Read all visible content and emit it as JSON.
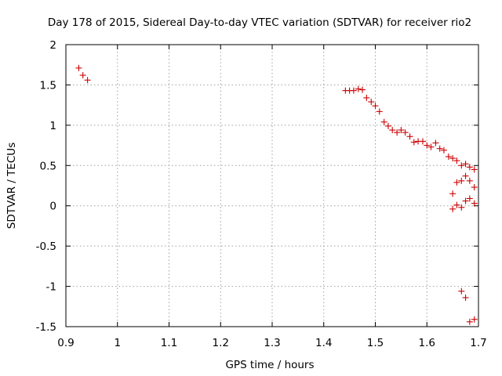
{
  "chart_data": {
    "type": "scatter",
    "title": "Day 178 of 2015, Sidereal Day-to-day VTEC variation (SDTVAR) for receiver rio2",
    "xlabel": "GPS time / hours",
    "ylabel": "SDTVAR / TECUs",
    "xlim": [
      0.9,
      1.7
    ],
    "ylim": [
      -1.5,
      2
    ],
    "xticks": [
      0.9,
      1.0,
      1.1,
      1.2,
      1.3,
      1.4,
      1.5,
      1.6,
      1.7
    ],
    "xtick_labels": [
      "0.9",
      "1",
      "1.1",
      "1.2",
      "1.3",
      "1.4",
      "1.5",
      "1.6",
      "1.7"
    ],
    "yticks": [
      -1.5,
      -1,
      -0.5,
      0,
      0.5,
      1,
      1.5,
      2
    ],
    "ytick_labels": [
      "-1.5",
      "-1",
      "-0.5",
      "0",
      "0.5",
      "1",
      "1.5",
      "2"
    ],
    "grid": true,
    "marker": "+",
    "color": "#cc0000",
    "series": [
      {
        "name": "rio2",
        "points": [
          [
            0.925,
            1.71
          ],
          [
            0.933,
            1.62
          ],
          [
            0.942,
            1.56
          ],
          [
            1.442,
            1.43
          ],
          [
            1.45,
            1.43
          ],
          [
            1.458,
            1.43
          ],
          [
            1.467,
            1.45
          ],
          [
            1.475,
            1.44
          ],
          [
            1.483,
            1.34
          ],
          [
            1.492,
            1.29
          ],
          [
            1.5,
            1.24
          ],
          [
            1.508,
            1.17
          ],
          [
            1.517,
            1.04
          ],
          [
            1.525,
            0.99
          ],
          [
            1.533,
            0.94
          ],
          [
            1.542,
            0.91
          ],
          [
            1.55,
            0.94
          ],
          [
            1.558,
            0.91
          ],
          [
            1.567,
            0.86
          ],
          [
            1.575,
            0.79
          ],
          [
            1.583,
            0.8
          ],
          [
            1.592,
            0.8
          ],
          [
            1.6,
            0.75
          ],
          [
            1.608,
            0.73
          ],
          [
            1.617,
            0.78
          ],
          [
            1.625,
            0.71
          ],
          [
            1.633,
            0.69
          ],
          [
            1.642,
            0.61
          ],
          [
            1.65,
            0.59
          ],
          [
            1.658,
            0.56
          ],
          [
            1.667,
            0.5
          ],
          [
            1.675,
            0.52
          ],
          [
            1.683,
            0.48
          ],
          [
            1.692,
            0.45
          ],
          [
            1.65,
            0.15
          ],
          [
            1.658,
            0.29
          ],
          [
            1.667,
            0.31
          ],
          [
            1.675,
            0.37
          ],
          [
            1.683,
            0.31
          ],
          [
            1.692,
            0.23
          ],
          [
            1.65,
            -0.04
          ],
          [
            1.658,
            0.01
          ],
          [
            1.667,
            -0.02
          ],
          [
            1.675,
            0.06
          ],
          [
            1.683,
            0.09
          ],
          [
            1.692,
            0.03
          ],
          [
            1.667,
            -1.06
          ],
          [
            1.675,
            -1.14
          ],
          [
            1.683,
            -1.44
          ],
          [
            1.692,
            -1.41
          ]
        ]
      }
    ]
  }
}
